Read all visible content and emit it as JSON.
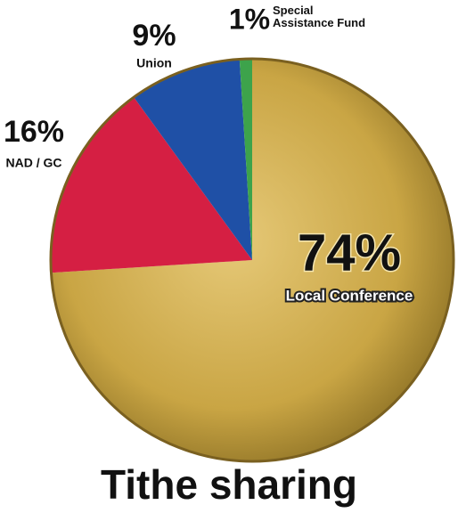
{
  "chart_data": {
    "type": "pie",
    "title": "Tithe sharing",
    "categories": [
      "Local Conference",
      "NAD / GC",
      "Union",
      "Special Assistance Fund"
    ],
    "values": [
      74,
      16,
      9,
      1
    ],
    "value_labels": [
      "74%",
      "16%",
      "9%",
      "1%"
    ],
    "colors": [
      "#c9a544",
      "#d51f43",
      "#1f50a6",
      "#3da34b"
    ]
  }
}
